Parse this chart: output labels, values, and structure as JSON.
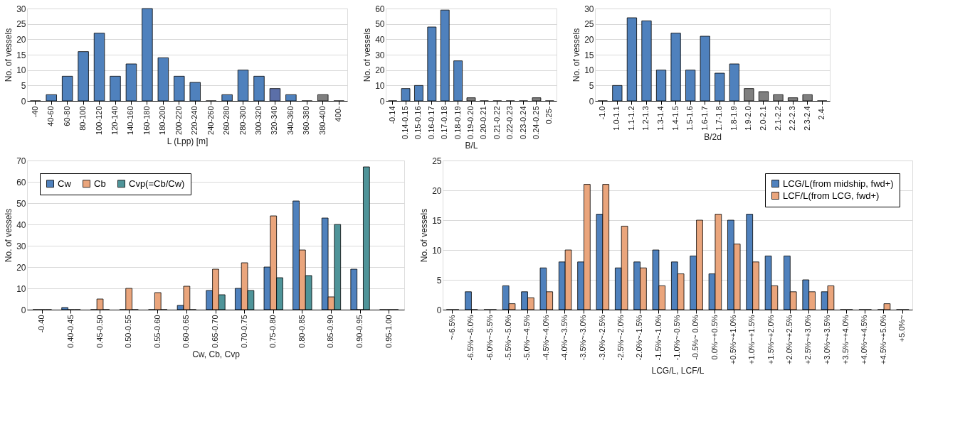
{
  "chart_data": [
    {
      "type": "bar",
      "xlabel": "L (Lpp) [m]",
      "ylabel": "No. of vessels",
      "categories": [
        "-40",
        "40-60",
        "60-80",
        "80-100",
        "100-120",
        "120-140",
        "140-160",
        "160-180",
        "180-200",
        "200-220",
        "220-240",
        "240-260",
        "260-280",
        "280-300",
        "300-320",
        "320-340",
        "340-360",
        "360-380",
        "380-400",
        "400-"
      ],
      "values": [
        0,
        2,
        8,
        16,
        22,
        8,
        12,
        30,
        14,
        8,
        6,
        0,
        2,
        10,
        8,
        4,
        2,
        0,
        2,
        0
      ],
      "colors": [
        "#4f81bd",
        "#4f81bd",
        "#4f81bd",
        "#4f81bd",
        "#4f81bd",
        "#4f81bd",
        "#4f81bd",
        "#4f81bd",
        "#4f81bd",
        "#4f81bd",
        "#4f81bd",
        "#4f81bd",
        "#4f81bd",
        "#4f81bd",
        "#4f81bd",
        "#5b6fa8",
        "#4f81bd",
        "#4f81bd",
        "#7f7f7f",
        "#4f81bd"
      ],
      "ylim": [
        0,
        30
      ],
      "yticks": [
        0,
        5,
        10,
        15,
        20,
        25,
        30
      ],
      "grid": "y"
    },
    {
      "type": "bar",
      "xlabel": "B/L",
      "ylabel": "No. of vessels",
      "categories": [
        "-0.14",
        "0.14-0.15",
        "0.15-0.16",
        "0.16-0.17",
        "0.17-0.18",
        "0.18-0.19",
        "0.19-0.20",
        "0.20-0.21",
        "0.21-0.22",
        "0.22-0.23",
        "0.23-0.24",
        "0.24-0.25",
        "0.25-"
      ],
      "values": [
        0,
        8,
        10,
        48,
        59,
        26,
        2,
        0,
        0,
        0,
        0,
        2,
        0
      ],
      "colors": [
        "#4f81bd",
        "#4f81bd",
        "#4f81bd",
        "#4f81bd",
        "#4f81bd",
        "#4f81bd",
        "#7f7f7f",
        "#7f7f7f",
        "#7f7f7f",
        "#7f7f7f",
        "#7f7f7f",
        "#7f7f7f",
        "#7f7f7f"
      ],
      "ylim": [
        0,
        60
      ],
      "yticks": [
        0,
        10,
        20,
        30,
        40,
        50,
        60
      ],
      "grid": "y"
    },
    {
      "type": "bar",
      "xlabel": "B/2d",
      "ylabel": "No. of vessels",
      "categories": [
        "-1.0",
        "1.0-1.1",
        "1.1-1.2",
        "1.2-1.3",
        "1.3-1.4",
        "1.4-1.5",
        "1.5-1.6",
        "1.6-1.7",
        "1.7-1.8",
        "1.8-1.9",
        "1.9-2.0",
        "2.0-2.1",
        "2.1-2.2",
        "2.2-2.3",
        "2.3-2.4",
        "2.4-"
      ],
      "values": [
        0,
        5,
        27,
        26,
        10,
        22,
        10,
        21,
        9,
        12,
        4,
        3,
        2,
        1,
        2,
        0
      ],
      "colors": [
        "#4f81bd",
        "#4f81bd",
        "#4f81bd",
        "#4f81bd",
        "#4f81bd",
        "#4f81bd",
        "#4f81bd",
        "#4f81bd",
        "#4f81bd",
        "#4f81bd",
        "#7f7f7f",
        "#7f7f7f",
        "#7f7f7f",
        "#7f7f7f",
        "#7f7f7f",
        "#7f7f7f"
      ],
      "ylim": [
        0,
        30
      ],
      "yticks": [
        0,
        5,
        10,
        15,
        20,
        25,
        30
      ],
      "grid": "y"
    },
    {
      "type": "bar",
      "xlabel": "Cw, Cb, Cvp",
      "ylabel": "No. of vessels",
      "categories": [
        "-0.40",
        "0.40-0.45",
        "0.45-0.50",
        "0.50-0.55",
        "0.55-0.60",
        "0.60-0.65",
        "0.65-0.70",
        "0.70-0.75",
        "0.75-0.80",
        "0.80-0.85",
        "0.85-0.90",
        "0.90-0.95",
        "0.95-1.00"
      ],
      "series": [
        {
          "name": "Cw",
          "color": "#4f81bd",
          "values": [
            0,
            1,
            0,
            0,
            0,
            2,
            9,
            10,
            20,
            51,
            43,
            19,
            0
          ]
        },
        {
          "name": "Cb",
          "color": "#eaa57c",
          "values": [
            0,
            0,
            5,
            10,
            8,
            11,
            19,
            22,
            44,
            28,
            6,
            0,
            0
          ]
        },
        {
          "name": "Cvp(=Cb/Cw)",
          "color": "#4f9499",
          "values": [
            0,
            0,
            0,
            0,
            0,
            0,
            7,
            9,
            15,
            16,
            40,
            67,
            0
          ]
        }
      ],
      "ylim": [
        0,
        70
      ],
      "yticks": [
        0,
        10,
        20,
        30,
        40,
        50,
        60,
        70
      ],
      "grid": "y",
      "legend": "top left"
    },
    {
      "type": "bar",
      "xlabel": "LCG/L, LCF/L",
      "ylabel": "No. of vessels",
      "categories": [
        "~-6.5%",
        "-6.5%~-6.0%",
        "-6.0%~-5.5%",
        "-5.5%~-5.0%",
        "-5.0%~-4.5%",
        "-4.5%~-4.0%",
        "-4.0%~-3.5%",
        "-3.5%~-3.0%",
        "-3.0%~-2.5%",
        "-2.5%~-2.0%",
        "-2.0%~-1.5%",
        "-1.5%~-1.0%",
        "-1.0%~-0.5%",
        "-0.5%~ 0.0%",
        "0.0%~+0.5%",
        "+0.5%~+1.0%",
        "+1.0%~+1.5%",
        "+1.5%~+2.0%",
        "+2.0%~+2.5%",
        "+2.5%~+3.0%",
        "+3.0%~+3.5%",
        "+3.5%~+4.0%",
        "+4.0%~+4.5%",
        "+4.5%~+5.0%",
        "+5.0%~"
      ],
      "series": [
        {
          "name": "LCG/L(from midship, fwd+)",
          "color": "#4f81bd",
          "values": [
            0,
            3,
            0,
            4,
            3,
            7,
            8,
            8,
            16,
            7,
            8,
            10,
            8,
            9,
            6,
            15,
            16,
            9,
            9,
            5,
            3,
            0,
            0,
            0,
            0
          ]
        },
        {
          "name": "LCF/L(from LCG, fwd+)",
          "color": "#eaa57c",
          "values": [
            0,
            0,
            0,
            1,
            2,
            3,
            10,
            21,
            21,
            14,
            7,
            4,
            6,
            15,
            16,
            11,
            8,
            4,
            3,
            3,
            4,
            0,
            0,
            1,
            0
          ]
        }
      ],
      "ylim": [
        0,
        25
      ],
      "yticks": [
        0,
        5,
        10,
        15,
        20,
        25
      ],
      "grid": "y",
      "legend": "top right"
    }
  ]
}
